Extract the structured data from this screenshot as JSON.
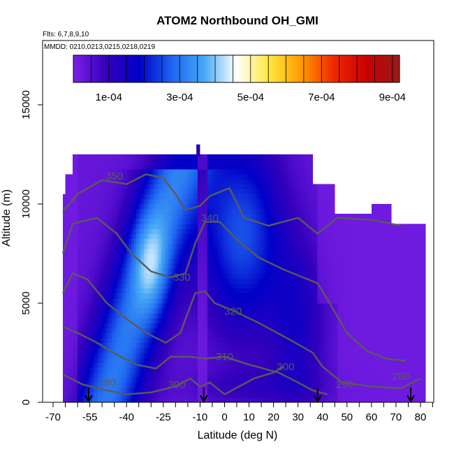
{
  "chart_data": {
    "type": "heatmap",
    "title": "ATOM2 Northbound OH_GMI",
    "flights_label": "Flts: 6,7,8,9,10",
    "dates_label": "MMDD: 0210,0213,0215,0218,0219",
    "xlabel": "Latitude (deg N)",
    "ylabel": "Altitude (m)",
    "xlim": [
      -70,
      85
    ],
    "ylim": [
      0,
      15000
    ],
    "x_ticks": [
      "-70",
      "-55",
      "-40",
      "-25",
      "-10",
      "0",
      "10",
      "20",
      "30",
      "40",
      "50",
      "60",
      "70",
      "80"
    ],
    "x_tick_values": [
      -70,
      -55,
      -40,
      -25,
      -10,
      0,
      10,
      20,
      30,
      40,
      50,
      60,
      70,
      80
    ],
    "y_ticks": [
      "0",
      "5000",
      "10000",
      "15000"
    ],
    "y_tick_values": [
      0,
      5000,
      10000,
      15000
    ],
    "colorbar": {
      "range": [
        0,
        0.00092
      ],
      "labels": [
        "1e-04",
        "3e-04",
        "5e-04",
        "7e-04",
        "9e-04"
      ],
      "label_values": [
        0.0001,
        0.0003,
        0.0005,
        0.0007,
        0.0009
      ],
      "stops": [
        "#7a1fe6",
        "#3300bb",
        "#0000c8",
        "#1e64f0",
        "#46a8f5",
        "#ffffff",
        "#ffe83c",
        "#ff9a00",
        "#f02800",
        "#c80000",
        "#9a1a1a"
      ]
    },
    "profile_markers_lat": [
      -55.5,
      -8.5,
      38,
      76
    ],
    "contour_labels": [
      {
        "text": "350",
        "x": -45,
        "y": 11400
      },
      {
        "text": "340",
        "x": -6,
        "y": 9300
      },
      {
        "text": "330",
        "x": -17.5,
        "y": 6300
      },
      {
        "text": "320",
        "x": 3.5,
        "y": 4600
      },
      {
        "text": "310",
        "x": 0,
        "y": 2300
      },
      {
        "text": "300",
        "x": 25,
        "y": 1800
      },
      {
        "text": "300",
        "x": -19.5,
        "y": 900
      },
      {
        "text": "290",
        "x": -48,
        "y": 1000
      },
      {
        "text": "290",
        "x": 49,
        "y": 900
      },
      {
        "text": "280",
        "x": 72,
        "y": 1300
      }
    ]
  }
}
